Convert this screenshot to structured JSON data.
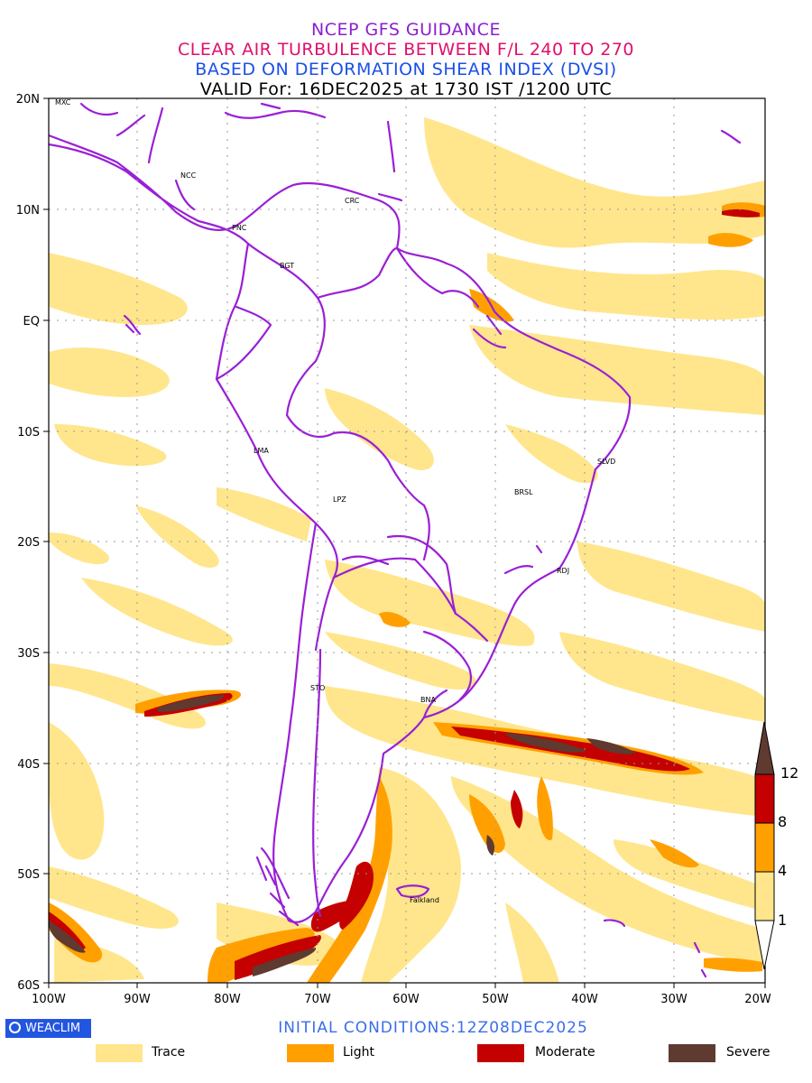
{
  "header": {
    "line1": "NCEP GFS GUIDANCE",
    "line2": "CLEAR AIR TURBULENCE BETWEEN F/L 240 TO 270",
    "line3": "BASED ON DEFORMATION SHEAR INDEX (DVSI)",
    "line4": "VALID For: 16DEC2025 at 1730 IST /1200 UTC"
  },
  "axes": {
    "lat_labels": [
      "20N",
      "10N",
      "EQ",
      "10S",
      "20S",
      "30S",
      "40S",
      "50S",
      "60S"
    ],
    "lon_labels": [
      "100W",
      "90W",
      "80W",
      "70W",
      "60W",
      "50W",
      "40W",
      "30W",
      "20W"
    ]
  },
  "cities": [
    {
      "name": "MXC"
    },
    {
      "name": "NCC"
    },
    {
      "name": "CRC"
    },
    {
      "name": "PNC"
    },
    {
      "name": "BGT"
    },
    {
      "name": "LMA"
    },
    {
      "name": "LPZ"
    },
    {
      "name": "BRSL"
    },
    {
      "name": "SLVD"
    },
    {
      "name": "RDJ"
    },
    {
      "name": "STO"
    },
    {
      "name": "BNA"
    },
    {
      "name": "Falkland"
    }
  ],
  "colorbar": {
    "ticks": [
      "12",
      "8",
      "4",
      "1"
    ],
    "colors": [
      "#5e3a30",
      "#c40000",
      "#ffa000",
      "#ffe68c",
      "#ffffff"
    ]
  },
  "footer": {
    "brand": "WEACLIM",
    "initial_conditions": "INITIAL CONDITIONS:12Z08DEC2025"
  },
  "legend": [
    {
      "label": "Trace",
      "color": "#ffe68c"
    },
    {
      "label": "Light",
      "color": "#ffa000"
    },
    {
      "label": "Moderate",
      "color": "#c40000"
    },
    {
      "label": "Severe",
      "color": "#5e3a30"
    }
  ],
  "colors": {
    "border": "#9a1fd6",
    "grid": "#999999"
  }
}
